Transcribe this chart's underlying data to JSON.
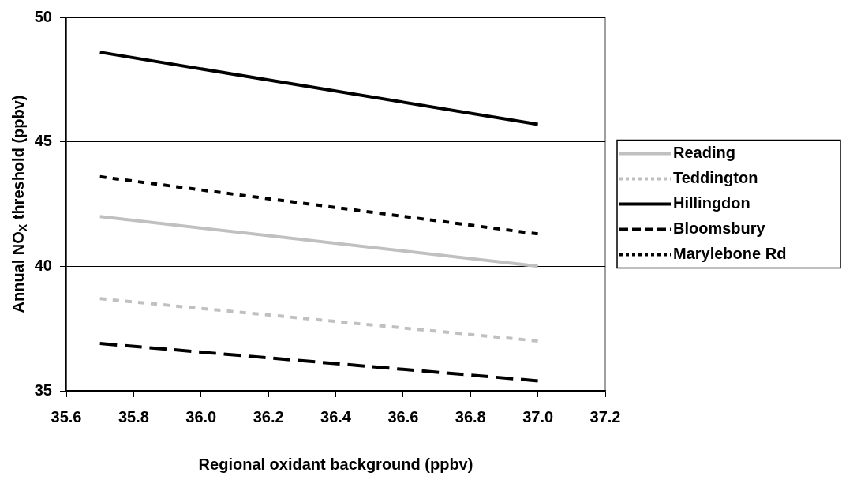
{
  "chart_data": {
    "type": "line",
    "xlabel": "Regional oxidant background (ppbv)",
    "ylabel": "Annual NO$_{X}$ threshold (ppbv)",
    "x": [
      35.7,
      37.0
    ],
    "series": [
      {
        "name": "Reading",
        "color": "#c0c0c0",
        "values": [
          42.0,
          40.0
        ],
        "line_style": "solid"
      },
      {
        "name": "Teddington",
        "color": "#c0c0c0",
        "values": [
          38.7,
          37.0
        ],
        "line_style": "dotted"
      },
      {
        "name": "Hillingdon",
        "color": "#000000",
        "values": [
          48.6,
          45.7
        ],
        "line_style": "solid"
      },
      {
        "name": "Bloomsbury",
        "color": "#000000",
        "values": [
          36.9,
          35.4
        ],
        "line_style": "dashed"
      },
      {
        "name": "Marylebone Rd",
        "color": "#000000",
        "values": [
          43.6,
          41.3
        ],
        "line_style": "dotted"
      }
    ],
    "xlim": [
      35.6,
      37.2
    ],
    "xticks": [
      {
        "value": 35.6,
        "label": "35.6"
      },
      {
        "value": 35.8,
        "label": "35.8"
      },
      {
        "value": 36.0,
        "label": "36.0"
      },
      {
        "value": 36.2,
        "label": "36.2"
      },
      {
        "value": 36.4,
        "label": "36.4"
      },
      {
        "value": 36.6,
        "label": "36.6"
      },
      {
        "value": 36.8,
        "label": "36.8"
      },
      {
        "value": 37.0,
        "label": "37.0"
      },
      {
        "value": 37.2,
        "label": "37.2"
      }
    ],
    "ylim": [
      35,
      50
    ],
    "yticks": [
      35,
      40,
      45,
      50
    ],
    "grid": "y",
    "legend": "right",
    "marker": "none"
  }
}
